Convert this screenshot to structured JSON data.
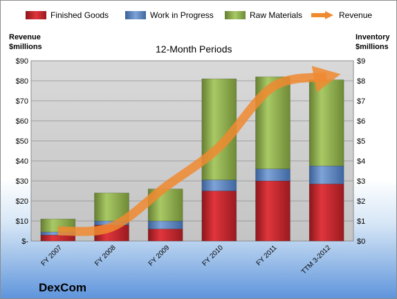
{
  "chart_data": {
    "type": "bar",
    "stacked": true,
    "title": "12-Month Periods",
    "categories": [
      "FY 2007",
      "FY 2008",
      "FY 2009",
      "FY 2010",
      "FY 2011",
      "TTM 3-2012"
    ],
    "series": [
      {
        "name": "Finished Goods",
        "axis": "right",
        "color": "#c0272d",
        "values": [
          0.3,
          0.8,
          0.6,
          2.5,
          3.0,
          2.85
        ]
      },
      {
        "name": "Work in Progress",
        "axis": "right",
        "color": "#4f7ec2",
        "values": [
          0.15,
          0.2,
          0.4,
          0.55,
          0.6,
          0.9
        ]
      },
      {
        "name": "Raw Materials",
        "axis": "right",
        "color": "#8cb04a",
        "values": [
          0.65,
          1.4,
          1.6,
          5.05,
          4.6,
          4.3
        ]
      }
    ],
    "line_series": {
      "name": "Revenue",
      "axis": "left",
      "color": "#f08a30",
      "values": [
        5,
        7,
        27,
        47,
        77,
        82
      ]
    },
    "left_axis": {
      "label": "Revenue $millions",
      "range": [
        0,
        90
      ],
      "ticks": [
        "$-",
        "$10",
        "$20",
        "$30",
        "$40",
        "$50",
        "$60",
        "$70",
        "$80",
        "$90"
      ]
    },
    "right_axis": {
      "label": "Inventory $millions",
      "range": [
        0,
        9
      ],
      "ticks": [
        "$0",
        "$1",
        "$2",
        "$3",
        "$4",
        "$5",
        "$6",
        "$7",
        "$8",
        "$9"
      ]
    },
    "grid": true,
    "legend": "top"
  },
  "labels": {
    "left_axis_title_1": "Revenue",
    "left_axis_title_2": "$millions",
    "right_axis_title_1": "Inventory",
    "right_axis_title_2": "$millions",
    "plot_title": "12-Month Periods",
    "company": "DexCom"
  },
  "legend": [
    {
      "label": "Finished Goods",
      "color": "#c0272d"
    },
    {
      "label": "Work in Progress",
      "color": "#4f7ec2"
    },
    {
      "label": "Raw Materials",
      "color": "#8cb04a"
    },
    {
      "label": "Revenue",
      "color": "#f08a30"
    }
  ]
}
